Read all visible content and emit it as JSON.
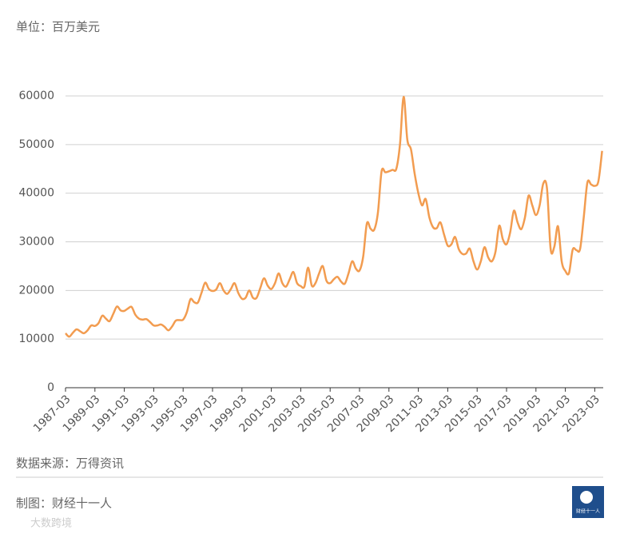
{
  "chart_data": {
    "type": "line",
    "subtitle": "单位：百万美元",
    "source": "数据来源：万得资讯",
    "credit": "制图：财经十一人",
    "logo_text": "财经十一人",
    "watermark": "大数跨境",
    "categories": [
      "1987-03",
      null,
      null,
      null,
      null,
      null,
      null,
      null,
      "1989-03",
      null,
      null,
      null,
      null,
      null,
      null,
      null,
      "1991-03",
      null,
      null,
      null,
      null,
      null,
      null,
      null,
      "1993-03",
      null,
      null,
      null,
      null,
      null,
      null,
      null,
      "1995-03",
      null,
      null,
      null,
      null,
      null,
      null,
      null,
      "1997-03",
      null,
      null,
      null,
      null,
      null,
      null,
      null,
      "1999-03",
      null,
      null,
      null,
      null,
      null,
      null,
      null,
      "2001-03",
      null,
      null,
      null,
      null,
      null,
      null,
      null,
      "2003-03",
      null,
      null,
      null,
      null,
      null,
      null,
      null,
      "2005-03",
      null,
      null,
      null,
      null,
      null,
      null,
      null,
      "2007-03",
      null,
      null,
      null,
      null,
      null,
      null,
      null,
      "2009-03",
      null,
      null,
      null,
      null,
      null,
      null,
      null,
      "2011-03",
      null,
      null,
      null,
      null,
      null,
      null,
      null,
      "2013-03",
      null,
      null,
      null,
      null,
      null,
      null,
      null,
      "2015-03",
      null,
      null,
      null,
      null,
      null,
      null,
      null,
      "2017-03",
      null,
      null,
      null,
      null,
      null,
      null,
      null,
      "2019-03",
      null,
      null,
      null,
      null,
      null,
      null,
      null,
      "2021-03",
      null,
      null,
      null,
      null,
      null,
      null,
      null,
      "2023-03",
      null,
      null
    ],
    "series": [
      {
        "name": null,
        "color": "#f29c50",
        "values": [
          11200,
          10500,
          11300,
          12000,
          11600,
          11200,
          11800,
          12800,
          12700,
          13300,
          14800,
          14200,
          13700,
          15200,
          16700,
          15900,
          15800,
          16300,
          16600,
          15000,
          14200,
          14000,
          14100,
          13500,
          12800,
          12800,
          13000,
          12500,
          11800,
          12600,
          13800,
          13900,
          14000,
          15500,
          18200,
          17600,
          17500,
          19500,
          21600,
          20300,
          19900,
          20200,
          21500,
          20000,
          19300,
          20300,
          21500,
          19500,
          18300,
          18500,
          20000,
          18500,
          18500,
          20500,
          22500,
          21000,
          20300,
          21500,
          23500,
          21500,
          20800,
          22300,
          23800,
          21500,
          20900,
          20800,
          24700,
          21000,
          21500,
          23500,
          25000,
          22000,
          21500,
          22300,
          22800,
          21800,
          21400,
          23500,
          26000,
          24500,
          24100,
          27000,
          33800,
          32700,
          32500,
          36000,
          44500,
          44300,
          44500,
          44800,
          45000,
          50000,
          59800,
          51000,
          49000,
          44000,
          40000,
          37500,
          38800,
          35000,
          33000,
          32800,
          34000,
          31500,
          29200,
          29500,
          31000,
          28500,
          27500,
          27600,
          28600,
          26000,
          24300,
          26000,
          28900,
          26800,
          26000,
          28000,
          33300,
          30500,
          29500,
          32000,
          36400,
          34000,
          32600,
          35000,
          39500,
          37500,
          35500,
          37500,
          42000,
          41000,
          28500,
          29000,
          33200,
          26000,
          24000,
          23600,
          28400,
          28300,
          28500,
          35000,
          42200,
          41800,
          41500,
          42500,
          48700
        ]
      }
    ],
    "ylim": [
      0,
      60000
    ],
    "yticks": [
      0,
      10000,
      20000,
      30000,
      40000,
      50000,
      60000
    ],
    "grid": true
  }
}
